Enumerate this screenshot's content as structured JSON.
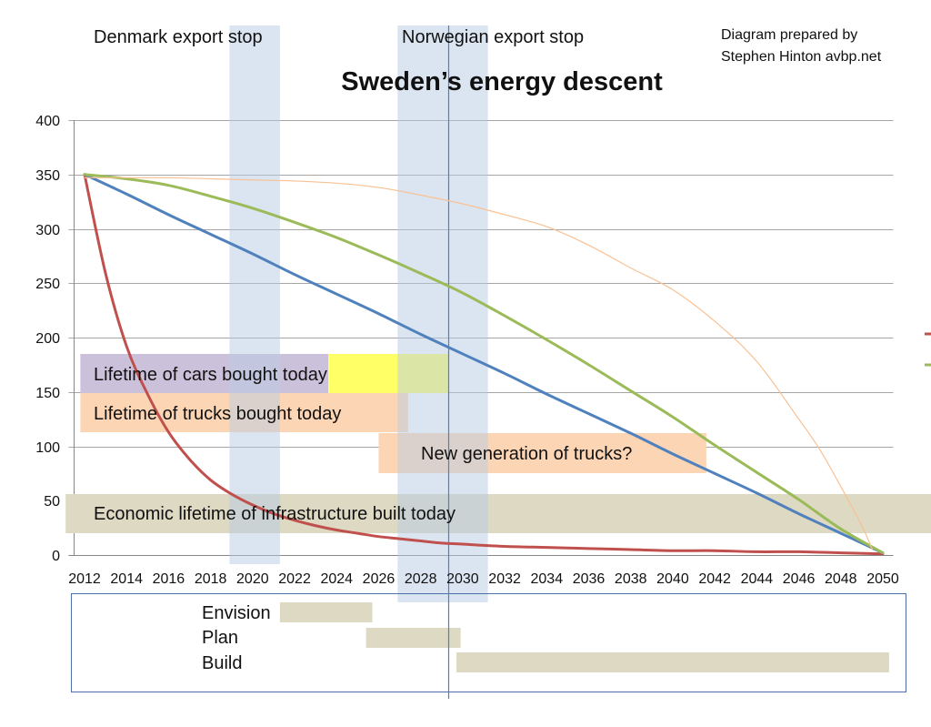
{
  "credit": {
    "line1": "Diagram prepared by",
    "line2": "Stephen Hinton avbp.net"
  },
  "chart_data": {
    "type": "line",
    "title": "Sweden’s energy descent",
    "xlim": [
      2012,
      2050
    ],
    "ylim": [
      0,
      400
    ],
    "xticks": [
      2012,
      2014,
      2016,
      2018,
      2020,
      2022,
      2024,
      2026,
      2028,
      2030,
      2032,
      2034,
      2036,
      2038,
      2040,
      2042,
      2044,
      2046,
      2048,
      2050
    ],
    "yticks": [
      0,
      50,
      100,
      150,
      200,
      250,
      300,
      350,
      400
    ],
    "grid": true,
    "legend": "right",
    "series": [
      {
        "color": "#c0504d",
        "x": [
          2012,
          2013,
          2014,
          2015,
          2016,
          2017,
          2018,
          2019,
          2020,
          2021,
          2022,
          2023,
          2024,
          2025,
          2026,
          2027,
          2028,
          2029,
          2030,
          2032,
          2034,
          2036,
          2038,
          2040,
          2042,
          2044,
          2046,
          2048,
          2050
        ],
        "y": [
          350,
          259,
          192,
          148,
          113,
          88,
          69,
          56,
          46,
          38,
          32,
          27,
          23,
          20,
          17,
          15,
          13,
          11,
          10,
          8,
          7,
          6,
          5,
          4,
          4,
          3,
          3,
          2,
          1
        ]
      },
      {
        "color": "#4f81bd",
        "x": [
          2012,
          2014,
          2016,
          2018,
          2020,
          2022,
          2024,
          2026,
          2028,
          2030,
          2032,
          2034,
          2036,
          2038,
          2040,
          2042,
          2044,
          2046,
          2048,
          2050
        ],
        "y": [
          350,
          332,
          313,
          295,
          277,
          258,
          240,
          222,
          203,
          185,
          167,
          148,
          130,
          112,
          93,
          75,
          57,
          38,
          20,
          2
        ]
      },
      {
        "color": "#9bbb59",
        "x": [
          2012,
          2014,
          2016,
          2018,
          2020,
          2022,
          2024,
          2026,
          2028,
          2030,
          2032,
          2034,
          2036,
          2038,
          2040,
          2042,
          2044,
          2046,
          2048,
          2050
        ],
        "y": [
          350,
          346,
          340,
          330,
          319,
          306,
          292,
          276,
          259,
          241,
          220,
          198,
          175,
          151,
          127,
          101,
          76,
          51,
          24,
          2
        ]
      },
      {
        "color": "#f9c193",
        "x": [
          2012,
          2014,
          2016,
          2018,
          2020,
          2022,
          2024,
          2026,
          2028,
          2030,
          2032,
          2034,
          2036,
          2038,
          2040,
          2042,
          2044,
          2046,
          2047,
          2048,
          2049,
          2049.5
        ],
        "y": [
          347,
          347,
          347,
          346,
          345,
          344,
          342,
          338,
          331,
          323,
          313,
          302,
          285,
          264,
          244,
          215,
          178,
          125,
          97,
          63,
          27,
          5
        ]
      }
    ],
    "annotations": {
      "vertical_bands": [
        {
          "label": "Denmark export stop",
          "start": 2018.9,
          "end": 2021.3,
          "color": "#b8cce4"
        },
        {
          "label": "Norwegian export stop",
          "start": 2026.9,
          "end": 2031.2,
          "color": "#b8cce4"
        }
      ],
      "vertical_line": 2029.3,
      "spans": [
        {
          "label": "Lifetime of cars bought today",
          "segments": [
            {
              "start": 2011.8,
              "end": 2023.6,
              "color": "#ccc1da"
            },
            {
              "start": 2023.6,
              "end": 2029.3,
              "color": "#ffff66"
            }
          ]
        },
        {
          "label": "Lifetime of trucks bought today",
          "segments": [
            {
              "start": 2011.8,
              "end": 2027.4,
              "color": "#fcd5b5"
            }
          ]
        },
        {
          "label": "New generation of trucks?",
          "segments": [
            {
              "start": 2026.0,
              "end": 2041.6,
              "color": "#fcd5b5"
            }
          ]
        },
        {
          "label": "Economic lifetime of infrastructure built today",
          "segments": [
            {
              "start": 2011.1,
              "end": 2052.3,
              "color": "#ddd9c3"
            }
          ]
        }
      ]
    },
    "phases": [
      {
        "label": "Envision",
        "start": 2021.3,
        "end": 2025.7,
        "color": "#ddd9c3"
      },
      {
        "label": "Plan",
        "start": 2025.4,
        "end": 2029.9,
        "color": "#ddd9c3"
      },
      {
        "label": "Build",
        "start": 2029.7,
        "end": 2050.3,
        "color": "#ddd9c3"
      }
    ]
  }
}
